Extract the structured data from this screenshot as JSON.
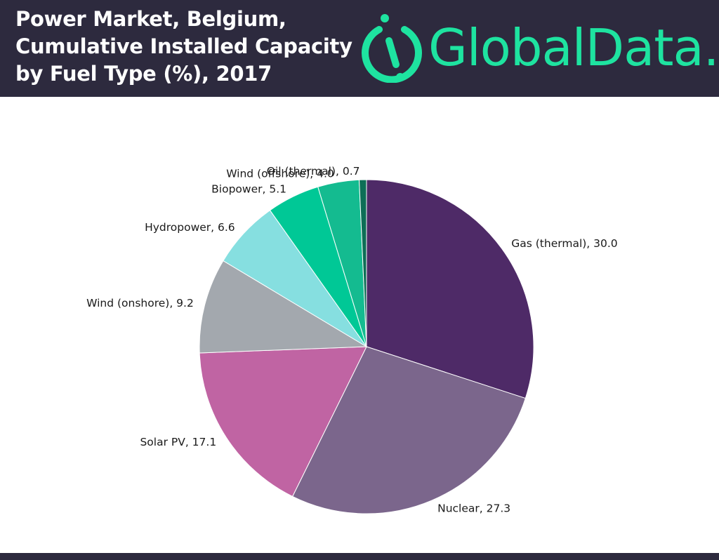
{
  "header": {
    "title_lines": [
      "Power Market, Belgium,",
      "Cumulative Installed Capacity",
      "by Fuel Type (%), 2017"
    ],
    "logo_text": "GlobalData.",
    "colors": {
      "background": "#2d2a3e",
      "title": "#ffffff",
      "logo": "#1ee3a0"
    }
  },
  "chart_data": {
    "type": "pie",
    "title": "Power Market, Belgium, Cumulative Installed Capacity by Fuel Type (%), 2017",
    "slices": [
      {
        "label": "Gas (thermal)",
        "value": 30.0,
        "display": "Gas (thermal), 30.0",
        "color": "#4e2a67"
      },
      {
        "label": "Nuclear",
        "value": 27.3,
        "display": "Nuclear, 27.3",
        "color": "#7b668c"
      },
      {
        "label": "Solar PV",
        "value": 17.1,
        "display": "Solar PV, 17.1",
        "color": "#c064a3"
      },
      {
        "label": "Wind (onshore)",
        "value": 9.2,
        "display": "Wind (onshore), 9.2",
        "color": "#a3a8ae"
      },
      {
        "label": "Hydropower",
        "value": 6.6,
        "display": "Hydropower, 6.6",
        "color": "#86dfe0"
      },
      {
        "label": "Biopower",
        "value": 5.1,
        "display": "Biopower, 5.1",
        "color": "#00c896"
      },
      {
        "label": "Wind (offshore)",
        "value": 4.0,
        "display": "Wind (offshore), 4.0",
        "color": "#14bb90"
      },
      {
        "label": "Oil (thermal)",
        "value": 0.7,
        "display": "Oil (thermal), 0.7",
        "color": "#0d6e56"
      }
    ],
    "start_angle": "12 o'clock",
    "direction": "clockwise",
    "legend": "none (direct labels)"
  }
}
